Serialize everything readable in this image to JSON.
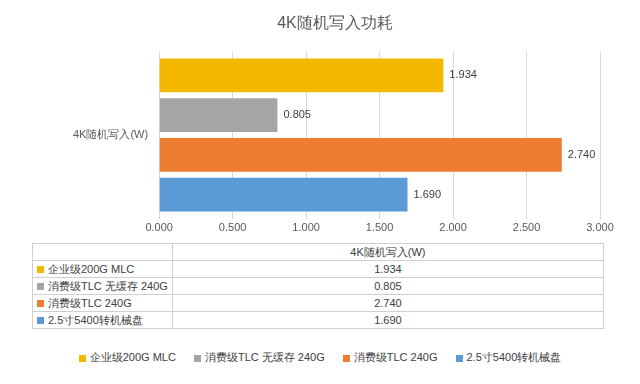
{
  "chart_data": {
    "type": "bar",
    "orientation": "horizontal",
    "title": "4K随机写入功耗",
    "categories": [
      "4K随机写入(W)"
    ],
    "series": [
      {
        "name": "企业级200G MLC",
        "color": "#f5b800",
        "values": [
          1.934
        ],
        "value_labels": [
          "1.934"
        ]
      },
      {
        "name": "消费级TLC 无缓存 240G",
        "color": "#a5a5a5",
        "values": [
          0.805
        ],
        "value_labels": [
          "0.805"
        ]
      },
      {
        "name": "消费级TLC 240G",
        "color": "#ed7d31",
        "values": [
          2.74
        ],
        "value_labels": [
          "2.740"
        ]
      },
      {
        "name": "2.5寸5400转机械盘",
        "color": "#5b9bd5",
        "values": [
          1.69
        ],
        "value_labels": [
          "1.690"
        ]
      }
    ],
    "xlim": [
      0,
      3
    ],
    "xticks": [
      {
        "value": 0,
        "label": "0.000"
      },
      {
        "value": 0.5,
        "label": "0.500"
      },
      {
        "value": 1,
        "label": "1.000"
      },
      {
        "value": 1.5,
        "label": "1.500"
      },
      {
        "value": 2,
        "label": "2.000"
      },
      {
        "value": 2.5,
        "label": "2.500"
      },
      {
        "value": 3,
        "label": "3.000"
      }
    ],
    "grid": true,
    "data_labels": true,
    "legend": "bottom"
  }
}
